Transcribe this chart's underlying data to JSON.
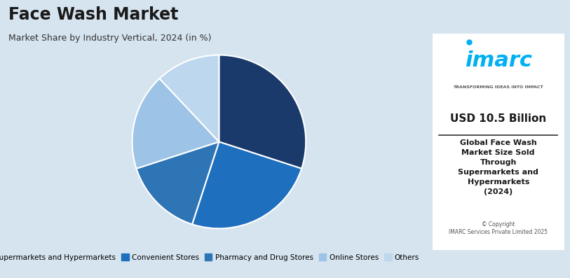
{
  "title": "Face Wash Market",
  "subtitle": "Market Share by Industry Vertical, 2024 (in %)",
  "slices": [
    {
      "label": "Supermarkets and Hypermarkets",
      "value": 30,
      "color": "#1a3a6b"
    },
    {
      "label": "Convenient Stores",
      "value": 25,
      "color": "#1f6fbf"
    },
    {
      "label": "Pharmacy and Drug Stores",
      "value": 15,
      "color": "#2e75b6"
    },
    {
      "label": "Online Stores",
      "value": 18,
      "color": "#9dc3e6"
    },
    {
      "label": "Others",
      "value": 12,
      "color": "#bdd7ee"
    }
  ],
  "background_color": "#d6e4f0",
  "right_panel_bg": "#ffffff",
  "usd_text": "USD 10.5 Billion",
  "desc_text": "Global Face Wash\nMarket Size Sold\nThrough\nSupermarkets and\nHypermarkets\n(2024)",
  "copyright_text": "© Copyright\nIMARC Services Private Limited 2025",
  "imarc_color": "#00b0f0",
  "divider_color": "#333333"
}
